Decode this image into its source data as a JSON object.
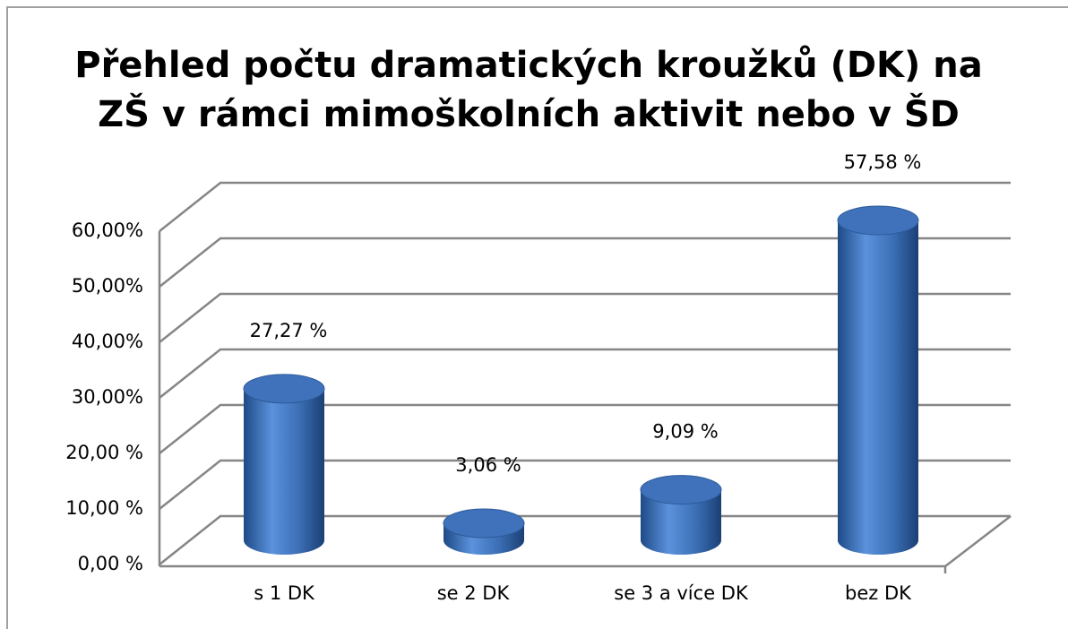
{
  "chart_data": {
    "type": "bar3d",
    "title": [
      "Přehled počtu dramatických kroužků (DK) na",
      "ZŠ v rámci mimoškolních aktivit nebo v ŠD"
    ],
    "categories": [
      "s 1 DK",
      "se 2 DK",
      "se 3 a více DK",
      "bez DK"
    ],
    "values": [
      27.27,
      3.06,
      9.09,
      57.58
    ],
    "value_labels": [
      "27,27 %",
      "3,06 %",
      "9,09 %",
      "57,58 %"
    ],
    "color": "#3f72bb",
    "ylim": [
      0,
      60
    ],
    "yticks": [
      {
        "value": 0,
        "label": "0,00 %"
      },
      {
        "value": 10,
        "label": "10,00 %"
      },
      {
        "value": 20,
        "label": "20,00 %"
      },
      {
        "value": 30,
        "label": "30,00%"
      },
      {
        "value": 40,
        "label": "40,00%"
      },
      {
        "value": 50,
        "label": "50,00%"
      },
      {
        "value": 60,
        "label": "60,00%"
      }
    ],
    "grid": true
  }
}
